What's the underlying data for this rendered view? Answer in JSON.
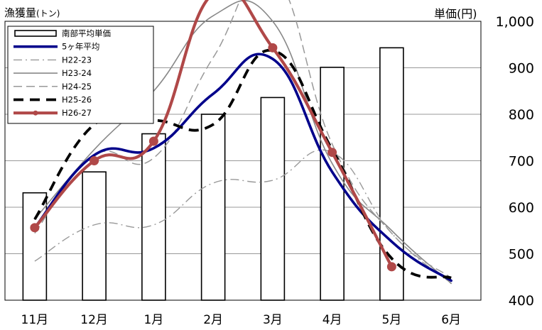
{
  "chart_data": {
    "type": "bar",
    "title": "",
    "ylabel_left": {
      "main": "漁獲量",
      "unit": "(トン)"
    },
    "ylabel_right": "単価(円)",
    "categories": [
      "11月",
      "12月",
      "1月",
      "2月",
      "3月",
      "4月",
      "5月",
      "6月"
    ],
    "y2lim": [
      400,
      1000
    ],
    "y2ticks": [
      "1,000",
      "900",
      "800",
      "700",
      "600",
      "500",
      "400"
    ],
    "grid": "horizontal",
    "legend_position": "top-left",
    "bars": {
      "name": "南部平均単価",
      "values": [
        631,
        676,
        758,
        800,
        836,
        901,
        943,
        null
      ],
      "axis": "right"
    },
    "series": [
      {
        "name": "5ヶ年平均",
        "axis": "left",
        "style": "solid",
        "color": "#00008B",
        "values": [
          0.26,
          0.52,
          0.545,
          0.74,
          0.865,
          0.46,
          0.21,
          0.07
        ]
      },
      {
        "name": "H22-23",
        "axis": "left",
        "style": "dashdot",
        "color": "#999999",
        "values": [
          0.14,
          0.27,
          0.27,
          0.42,
          0.43,
          0.53,
          0.24,
          0.06
        ]
      },
      {
        "name": "H23-24",
        "axis": "left",
        "style": "solid-thin",
        "color": "#888888",
        "values": [
          0.29,
          0.54,
          0.75,
          1.02,
          1.0,
          0.49,
          0.25,
          0.06
        ]
      },
      {
        "name": "H24-25",
        "axis": "left",
        "style": "dashed-thin",
        "color": "#999999",
        "values": [
          0.24,
          0.52,
          0.51,
          0.87,
          1.17,
          0.56,
          0.24,
          0.08
        ]
      },
      {
        "name": "H25-26",
        "axis": "left",
        "style": "dashed-thick",
        "color": "#000000",
        "values": [
          0.29,
          0.63,
          0.645,
          0.63,
          0.895,
          0.54,
          0.15,
          0.08
        ]
      },
      {
        "name": "H26-27",
        "axis": "left",
        "style": "solid-marker",
        "color": "#B04848",
        "values": [
          0.26,
          0.5,
          0.57,
          1.1,
          0.905,
          0.53,
          0.12,
          null
        ]
      }
    ]
  }
}
